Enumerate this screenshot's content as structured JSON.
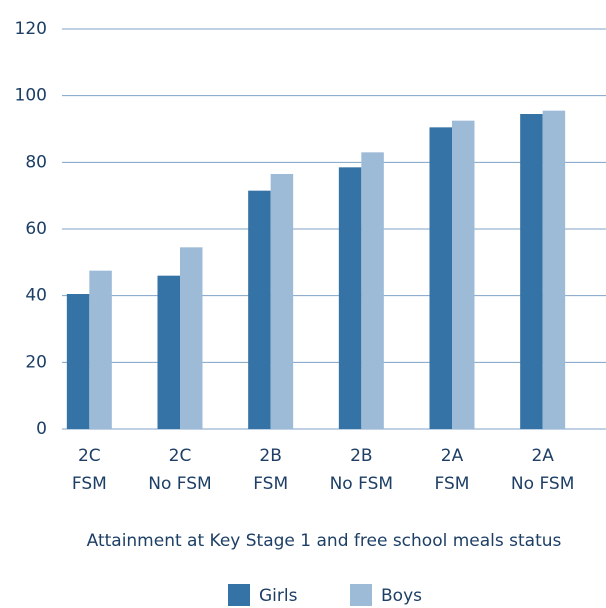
{
  "chart_data": {
    "type": "bar",
    "categories": [
      [
        "2C",
        "FSM"
      ],
      [
        "2C",
        "No FSM"
      ],
      [
        "2B",
        "FSM"
      ],
      [
        "2B",
        "No FSM"
      ],
      [
        "2A",
        "FSM"
      ],
      [
        "2A",
        "No FSM"
      ]
    ],
    "series": [
      {
        "name": "Girls",
        "color": "#3573a6",
        "values": [
          40.5,
          46,
          71.5,
          78.5,
          90.5,
          94.5
        ]
      },
      {
        "name": "Boys",
        "color": "#9dbad7",
        "values": [
          47.5,
          54.5,
          76.5,
          83,
          92.5,
          95.5
        ]
      }
    ],
    "x_label": "Attainment at Key Stage 1 and free school meals status",
    "ylim": [
      0,
      120
    ],
    "yticks": [
      0,
      20,
      40,
      60,
      80,
      100,
      120
    ],
    "grid": true
  }
}
